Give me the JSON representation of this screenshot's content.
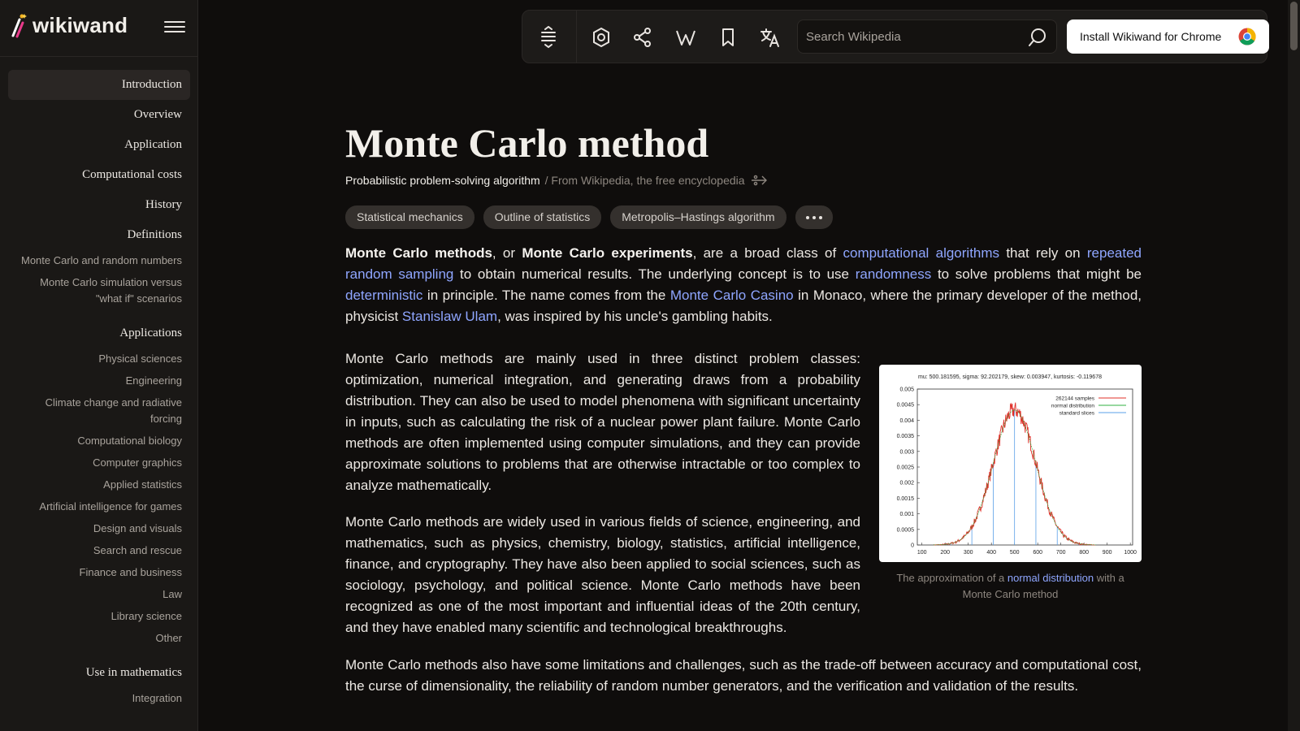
{
  "app": {
    "brand": "wikiwand",
    "colors": {
      "background": "#0f0d0c",
      "sidebar": "#1a1816",
      "link": "#8fa6ff",
      "chip": "#34302d"
    }
  },
  "toc": {
    "items": [
      {
        "label": "Introduction",
        "level": 1,
        "active": true
      },
      {
        "label": "Overview",
        "level": 1
      },
      {
        "label": "Application",
        "level": 1
      },
      {
        "label": "Computational costs",
        "level": 1
      },
      {
        "label": "History",
        "level": 1
      },
      {
        "label": "Definitions",
        "level": 1
      },
      {
        "label": "Monte Carlo and random numbers",
        "level": 2
      },
      {
        "label": "Monte Carlo simulation versus \"what if\" scenarios",
        "level": 2
      },
      {
        "label": "Applications",
        "level": 1
      },
      {
        "label": "Physical sciences",
        "level": 2
      },
      {
        "label": "Engineering",
        "level": 2
      },
      {
        "label": "Climate change and radiative forcing",
        "level": 2
      },
      {
        "label": "Computational biology",
        "level": 2
      },
      {
        "label": "Computer graphics",
        "level": 2
      },
      {
        "label": "Applied statistics",
        "level": 2
      },
      {
        "label": "Artificial intelligence for games",
        "level": 2
      },
      {
        "label": "Design and visuals",
        "level": 2
      },
      {
        "label": "Search and rescue",
        "level": 2
      },
      {
        "label": "Finance and business",
        "level": 2
      },
      {
        "label": "Law",
        "level": 2
      },
      {
        "label": "Library science",
        "level": 2
      },
      {
        "label": "Other",
        "level": 2
      },
      {
        "label": "Use in mathematics",
        "level": 1
      },
      {
        "label": "Integration",
        "level": 2
      }
    ]
  },
  "toolbar": {
    "icons": [
      "text-size-icon",
      "settings-icon",
      "share-icon",
      "wikipedia-icon",
      "bookmark-icon",
      "translate-icon"
    ],
    "search_placeholder": "Search Wikipedia",
    "install_label": "Install Wikiwand for Chrome"
  },
  "article": {
    "title": "Monte Carlo method",
    "short_description": "Probabilistic problem-solving algorithm",
    "source_note": "/ From Wikipedia, the free encyclopedia",
    "related": [
      "Statistical mechanics",
      "Outline of statistics",
      "Metropolis–Hastings algorithm"
    ],
    "p1": [
      {
        "t": "Monte Carlo methods",
        "b": true
      },
      {
        "t": ", or "
      },
      {
        "t": "Monte Carlo experiments",
        "b": true
      },
      {
        "t": ", are a broad class of "
      },
      {
        "t": "computational algorithms",
        "link": true
      },
      {
        "t": " that rely on "
      },
      {
        "t": "repeated random sampling",
        "link": true
      },
      {
        "t": " to obtain numerical results. The underlying concept is to use "
      },
      {
        "t": "randomness",
        "link": true
      },
      {
        "t": " to solve problems that might be "
      },
      {
        "t": "deterministic",
        "link": true
      },
      {
        "t": " in principle. The name comes from the "
      },
      {
        "t": "Monte Carlo Casino",
        "link": true
      },
      {
        "t": " in Monaco, where the primary developer of the method, physicist "
      },
      {
        "t": "Stanislaw Ulam",
        "link": true
      },
      {
        "t": ", was inspired by his uncle's gambling habits."
      }
    ],
    "p2": "Monte Carlo methods are mainly used in three distinct problem classes: optimization, numerical integration, and generating draws from a probability distribution. They can also be used to model phenomena with significant uncertainty in inputs, such as calculating the risk of a nuclear power plant failure. Monte Carlo methods are often implemented using computer simulations, and they can provide approximate solutions to problems that are otherwise intractable or too complex to analyze mathematically.",
    "p3": "Monte Carlo methods are widely used in various fields of science, engineering, and mathematics, such as physics, chemistry, biology, statistics, artificial intelligence, finance, and cryptography. They have also been applied to social sciences, such as sociology, psychology, and political science. Monte Carlo methods have been recognized as one of the most important and influential ideas of the 20th century, and they have enabled many scientific and technological breakthroughs.",
    "p4": "Monte Carlo methods also have some limitations and challenges, such as the trade-off between accuracy and computational cost, the curse of dimensionality, the reliability of random number generators, and the verification and validation of the results.",
    "figure": {
      "caption_before": "The approximation of a ",
      "caption_link": "normal distribution",
      "caption_after": " with a Monte Carlo method",
      "plot_header": "mu: 500.181595,  sigma: 92.202179,  skew: 0.003947,  kurtosis: -0.119678",
      "legend": [
        {
          "label": "262144 samples",
          "color": "#e0302a"
        },
        {
          "label": "normal distribution",
          "color": "#30b040"
        },
        {
          "label": "standard slices",
          "color": "#5aa0e8"
        }
      ],
      "y_ticks": [
        "0.005",
        "0.0045",
        "0.004",
        "0.0035",
        "0.003",
        "0.0025",
        "0.002",
        "0.0015",
        "0.001",
        "0.0005",
        "0"
      ],
      "x_ticks": [
        "100",
        "200",
        "300",
        "400",
        "500",
        "600",
        "700",
        "800",
        "900",
        "1000"
      ]
    }
  }
}
